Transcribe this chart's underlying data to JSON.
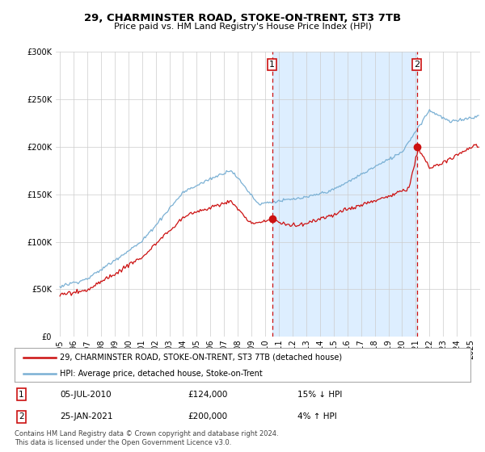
{
  "title": "29, CHARMINSTER ROAD, STOKE-ON-TRENT, ST3 7TB",
  "subtitle": "Price paid vs. HM Land Registry's House Price Index (HPI)",
  "legend_line1": "29, CHARMINSTER ROAD, STOKE-ON-TRENT, ST3 7TB (detached house)",
  "legend_line2": "HPI: Average price, detached house, Stoke-on-Trent",
  "annotation1_date": "05-JUL-2010",
  "annotation1_price": "£124,000",
  "annotation1_pct": "15% ↓ HPI",
  "annotation2_date": "25-JAN-2021",
  "annotation2_price": "£200,000",
  "annotation2_pct": "4% ↑ HPI",
  "footer": "Contains HM Land Registry data © Crown copyright and database right 2024.\nThis data is licensed under the Open Government Licence v3.0.",
  "hpi_color": "#7ab0d4",
  "price_color": "#cc1111",
  "background_color": "#ffffff",
  "grid_color": "#cccccc",
  "shade_color": "#ddeeff",
  "ylim": [
    0,
    300000
  ],
  "yticks": [
    0,
    50000,
    100000,
    150000,
    200000,
    250000,
    300000
  ],
  "xlim_start": 1994.7,
  "xlim_end": 2025.7,
  "sale1_x": 2010.5,
  "sale1_y": 124000,
  "sale2_x": 2021.07,
  "sale2_y": 200000
}
